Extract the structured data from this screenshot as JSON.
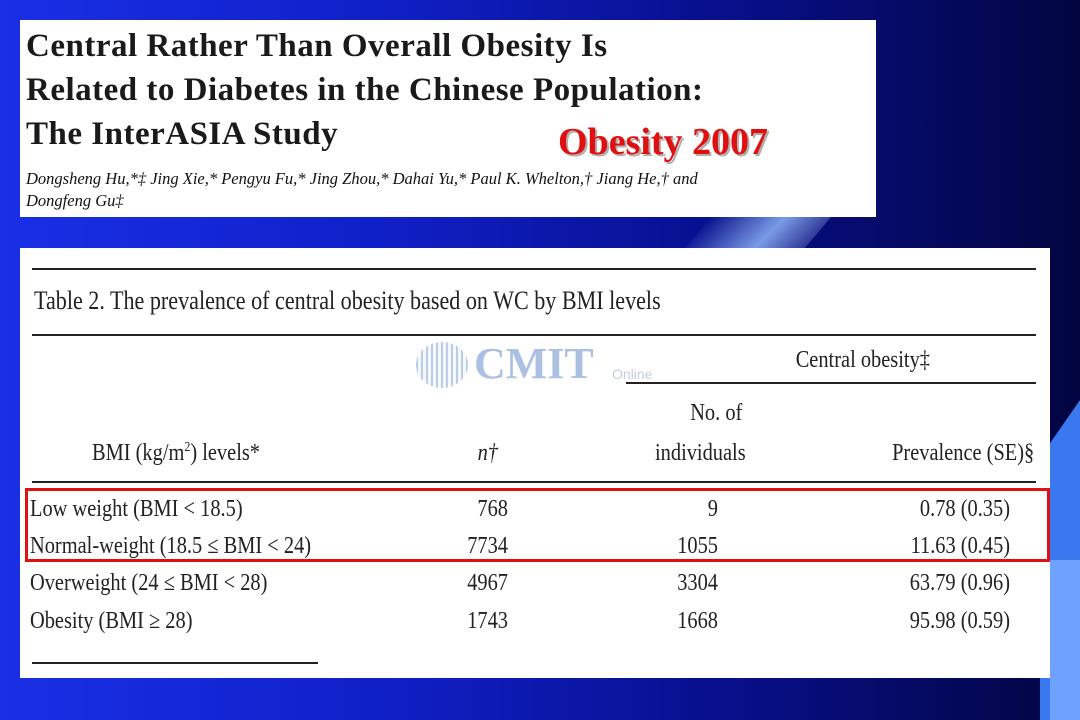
{
  "paper": {
    "title_lines": [
      "Central Rather Than Overall Obesity Is",
      "Related to Diabetes in the Chinese Population:",
      "The InterASIA Study"
    ],
    "journal_tag": "Obesity 2007",
    "authors_line1": "Dongsheng Hu,*‡ Jing Xie,* Pengyu Fu,* Jing Zhou,* Dahai Yu,* Paul K. Whelton,† Jiang He,† and",
    "authors_line2": "Dongfeng Gu‡"
  },
  "table": {
    "caption": "Table 2.   The prevalence of central obesity based on WC by BMI levels",
    "group_header": "Central obesity‡",
    "headers": {
      "bmi_pre": "BMI (kg/m",
      "bmi_sup": "2",
      "bmi_post": ") levels*",
      "n": "n†",
      "individuals_line1": "No. of",
      "individuals_line2": "individuals",
      "prevalence": "Prevalence (SE)§"
    },
    "rows": [
      {
        "bmi": "Low weight (BMI < 18.5)",
        "n": "768",
        "individuals": "9",
        "prevalence": "0.78 (0.35)"
      },
      {
        "bmi": "Normal-weight (18.5 ≤ BMI < 24)",
        "n": "7734",
        "individuals": "1055",
        "prevalence": "11.63 (0.45)"
      },
      {
        "bmi": "Overweight (24 ≤ BMI < 28)",
        "n": "4967",
        "individuals": "3304",
        "prevalence": "63.79 (0.96)"
      },
      {
        "bmi": "Obesity (BMI ≥ 28)",
        "n": "1743",
        "individuals": "1668",
        "prevalence": "95.98 (0.59)"
      }
    ]
  },
  "watermark": {
    "brand": "CMIT",
    "sub": "Online"
  },
  "colors": {
    "highlight": "#e01010",
    "journal_tag": "#e01010"
  }
}
